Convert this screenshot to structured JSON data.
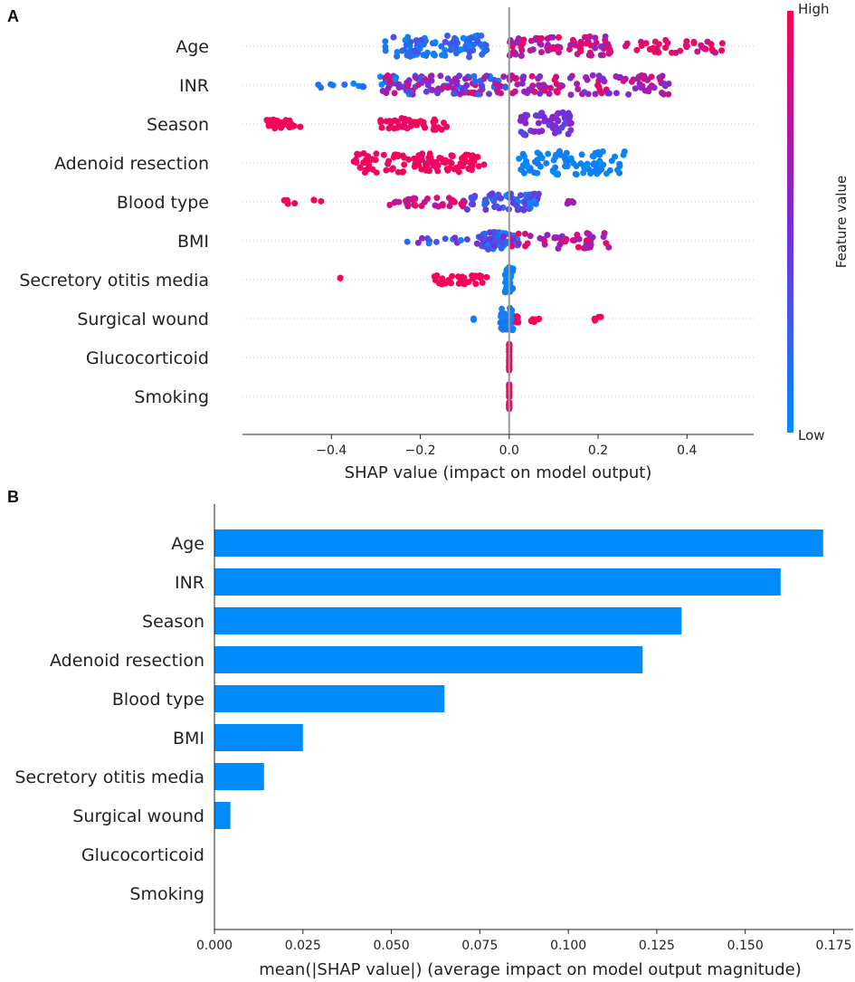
{
  "chart_data": [
    {
      "panel": "A",
      "type": "scatter",
      "subtype": "shap-beeswarm",
      "xlabel": "SHAP value (impact on model output)",
      "ylabel": "",
      "xlim": [
        -0.6,
        0.55
      ],
      "xticks": [
        -0.4,
        -0.2,
        0.0,
        0.2,
        0.4
      ],
      "xtick_labels": [
        "−0.4",
        "−0.2",
        "0.0",
        "0.2",
        "0.4"
      ],
      "features": [
        "Age",
        "INR",
        "Season",
        "Adenoid resection",
        "Blood type",
        "BMI",
        "Secretory otitis media",
        "Surgical wound",
        "Glucocorticoid",
        "Smoking"
      ],
      "colorbar": {
        "high_label": "High",
        "low_label": "Low",
        "title": "Feature value",
        "high_color": "#ff0052",
        "low_color": "#008bfb"
      },
      "series": [
        {
          "name": "Age",
          "clusters": [
            {
              "x": [
                -0.28,
                -0.05
              ],
              "n": 90,
              "f": [
                0.0,
                0.35
              ],
              "w": 0.28
            },
            {
              "x": [
                0.0,
                0.23
              ],
              "n": 80,
              "f": [
                0.55,
                1.0
              ],
              "w": 0.25
            },
            {
              "x": [
                0.26,
                0.48
              ],
              "n": 38,
              "f": [
                0.75,
                1.0
              ],
              "w": 0.18
            }
          ]
        },
        {
          "name": "INR",
          "clusters": [
            {
              "x": [
                -0.44,
                -0.32
              ],
              "n": 10,
              "f": [
                0.0,
                0.25
              ],
              "w": 0.08
            },
            {
              "x": [
                -0.29,
                0.0
              ],
              "n": 120,
              "f": [
                0.0,
                1.0
              ],
              "w": 0.25
            },
            {
              "x": [
                0.0,
                0.37
              ],
              "n": 100,
              "f": [
                0.45,
                0.95
              ],
              "w": 0.25
            }
          ]
        },
        {
          "name": "Season",
          "clusters": [
            {
              "x": [
                -0.55,
                -0.47
              ],
              "n": 30,
              "f": [
                0.95,
                1.0
              ],
              "w": 0.12
            },
            {
              "x": [
                -0.29,
                -0.14
              ],
              "n": 45,
              "f": [
                0.9,
                1.0
              ],
              "w": 0.15
            },
            {
              "x": [
                0.02,
                0.14
              ],
              "n": 60,
              "f": [
                0.35,
                0.6
              ],
              "w": 0.3
            }
          ]
        },
        {
          "name": "Adenoid resection",
          "clusters": [
            {
              "x": [
                -0.35,
                -0.05
              ],
              "n": 110,
              "f": [
                0.9,
                1.0
              ],
              "w": 0.25
            },
            {
              "x": [
                0.02,
                0.26
              ],
              "n": 90,
              "f": [
                0.0,
                0.1
              ],
              "w": 0.3
            }
          ]
        },
        {
          "name": "Blood type",
          "clusters": [
            {
              "x": [
                -0.51,
                -0.42
              ],
              "n": 7,
              "f": [
                0.9,
                1.0
              ],
              "w": 0.05
            },
            {
              "x": [
                -0.27,
                -0.1
              ],
              "n": 35,
              "f": [
                0.6,
                1.0
              ],
              "w": 0.12
            },
            {
              "x": [
                -0.1,
                0.07
              ],
              "n": 70,
              "f": [
                0.0,
                0.5
              ],
              "w": 0.22
            },
            {
              "x": [
                0.13,
                0.15
              ],
              "n": 6,
              "f": [
                0.5,
                0.8
              ],
              "w": 0.05
            }
          ]
        },
        {
          "name": "BMI",
          "clusters": [
            {
              "x": [
                -0.23,
                -0.05
              ],
              "n": 18,
              "f": [
                0.0,
                0.6
              ],
              "w": 0.08
            },
            {
              "x": [
                -0.07,
                0.02
              ],
              "n": 60,
              "f": [
                0.0,
                0.5
              ],
              "w": 0.22
            },
            {
              "x": [
                0.0,
                0.23
              ],
              "n": 45,
              "f": [
                0.5,
                1.0
              ],
              "w": 0.2
            }
          ]
        },
        {
          "name": "Secretory otitis media",
          "clusters": [
            {
              "x": [
                -0.38,
                -0.38
              ],
              "n": 2,
              "f": [
                1.0,
                1.0
              ],
              "w": 0.05
            },
            {
              "x": [
                -0.17,
                -0.05
              ],
              "n": 35,
              "f": [
                0.95,
                1.0
              ],
              "w": 0.12
            },
            {
              "x": [
                -0.01,
                0.01
              ],
              "n": 40,
              "f": [
                0.0,
                0.1
              ],
              "w": 0.35
            }
          ]
        },
        {
          "name": "Surgical wound",
          "clusters": [
            {
              "x": [
                -0.08,
                -0.08
              ],
              "n": 2,
              "f": [
                0.0,
                0.1
              ],
              "w": 0.04
            },
            {
              "x": [
                -0.02,
                0.01
              ],
              "n": 35,
              "f": [
                0.0,
                0.2
              ],
              "w": 0.3
            },
            {
              "x": [
                0.01,
                0.07
              ],
              "n": 10,
              "f": [
                0.9,
                1.0
              ],
              "w": 0.1
            },
            {
              "x": [
                0.19,
                0.21
              ],
              "n": 4,
              "f": [
                1.0,
                1.0
              ],
              "w": 0.05
            }
          ]
        },
        {
          "name": "Glucocorticoid",
          "clusters": [
            {
              "x": [
                0.0,
                0.0
              ],
              "n": 30,
              "f": [
                0.9,
                1.0
              ],
              "w": 0.35
            }
          ]
        },
        {
          "name": "Smoking",
          "clusters": [
            {
              "x": [
                0.0,
                0.0
              ],
              "n": 30,
              "f": [
                0.85,
                1.0
              ],
              "w": 0.35
            }
          ]
        }
      ]
    },
    {
      "panel": "B",
      "type": "bar",
      "orientation": "horizontal",
      "xlabel": "mean(|SHAP value|) (average impact on model output magnitude)",
      "ylabel": "",
      "xlim": [
        0.0,
        0.1805
      ],
      "xticks": [
        0.0,
        0.025,
        0.05,
        0.075,
        0.1,
        0.125,
        0.15,
        0.175
      ],
      "xtick_labels": [
        "0.000",
        "0.025",
        "0.050",
        "0.075",
        "0.100",
        "0.125",
        "0.150",
        "0.175"
      ],
      "categories": [
        "Age",
        "INR",
        "Season",
        "Adenoid resection",
        "Blood type",
        "BMI",
        "Secretory otitis media",
        "Surgical wound",
        "Glucocorticoid",
        "Smoking"
      ],
      "values": [
        0.172,
        0.16,
        0.132,
        0.121,
        0.065,
        0.025,
        0.014,
        0.0045,
        0.0,
        0.0
      ],
      "bar_color": "#008bfb"
    }
  ],
  "panels": {
    "a_letter": "A",
    "b_letter": "B"
  },
  "colors": {
    "high": "#ff0052",
    "low": "#008bfb",
    "mid": "#7a2bd9",
    "axis": "#222222",
    "zero_line": "#999999",
    "bar": "#008bfb"
  }
}
